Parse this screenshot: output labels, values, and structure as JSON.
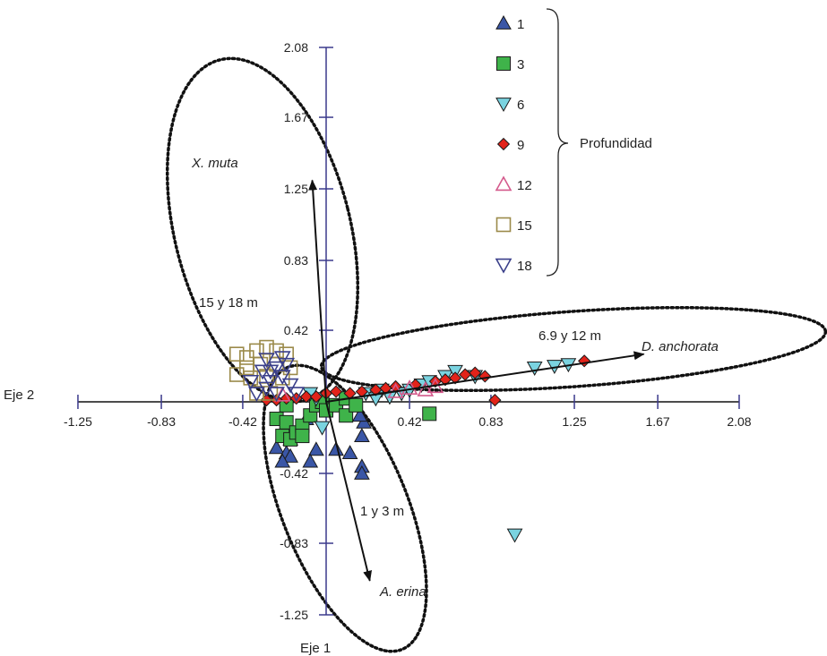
{
  "chart_data": {
    "type": "scatter",
    "xaxis_title": "Eje 2",
    "yaxis_title": "Eje 1",
    "xticks": [
      -1.25,
      -0.83,
      -0.42,
      0.42,
      0.83,
      1.25,
      1.67,
      2.08
    ],
    "yticks": [
      2.08,
      1.67,
      1.25,
      0.83,
      0.42,
      -0.42,
      -0.83,
      -1.25
    ],
    "xlim": [
      -1.25,
      2.08
    ],
    "ylim": [
      -1.25,
      2.08
    ],
    "legend_title": "Profundidad",
    "legend_placement": "top-right",
    "series": [
      {
        "name": "1",
        "marker": "triangle-up",
        "color": "#3a56a6",
        "filled": true,
        "points": [
          [
            -0.25,
            -0.27
          ],
          [
            -0.2,
            -0.3
          ],
          [
            -0.18,
            -0.32
          ],
          [
            -0.05,
            -0.28
          ],
          [
            -0.08,
            -0.35
          ],
          [
            0.05,
            -0.28
          ],
          [
            0.12,
            -0.3
          ],
          [
            0.18,
            -0.2
          ],
          [
            0.18,
            -0.38
          ],
          [
            0.18,
            -0.42
          ],
          [
            0.19,
            -0.12
          ],
          [
            0.17,
            -0.08
          ],
          [
            -0.1,
            -0.1
          ],
          [
            -0.18,
            -0.22
          ],
          [
            -0.22,
            -0.35
          ]
        ]
      },
      {
        "name": "3",
        "marker": "square",
        "color": "#3fb34a",
        "filled": true,
        "points": [
          [
            -0.25,
            -0.1
          ],
          [
            -0.2,
            -0.12
          ],
          [
            -0.22,
            -0.2
          ],
          [
            -0.18,
            -0.22
          ],
          [
            -0.15,
            -0.18
          ],
          [
            -0.12,
            -0.14
          ],
          [
            -0.08,
            -0.08
          ],
          [
            -0.05,
            -0.02
          ],
          [
            -0.02,
            0.0
          ],
          [
            0.0,
            -0.05
          ],
          [
            0.05,
            -0.02
          ],
          [
            0.1,
            -0.08
          ],
          [
            0.1,
            0.02
          ],
          [
            0.15,
            -0.02
          ],
          [
            0.52,
            -0.07
          ],
          [
            -0.2,
            -0.02
          ],
          [
            -0.12,
            -0.2
          ]
        ]
      },
      {
        "name": "6",
        "marker": "triangle-down",
        "color": "#7ad3e0",
        "filled": true,
        "points": [
          [
            -0.05,
            0.02
          ],
          [
            -0.08,
            0.05
          ],
          [
            -0.02,
            -0.15
          ],
          [
            0.2,
            0.05
          ],
          [
            0.28,
            0.07
          ],
          [
            0.32,
            0.03
          ],
          [
            0.38,
            0.05
          ],
          [
            0.42,
            0.07
          ],
          [
            0.48,
            0.1
          ],
          [
            0.52,
            0.12
          ],
          [
            0.6,
            0.15
          ],
          [
            0.65,
            0.18
          ],
          [
            0.75,
            0.15
          ],
          [
            1.05,
            0.2
          ],
          [
            1.15,
            0.21
          ],
          [
            1.22,
            0.22
          ],
          [
            0.95,
            -0.78
          ],
          [
            0.25,
            0.02
          ]
        ]
      },
      {
        "name": "9",
        "marker": "diamond",
        "color": "#e2231a",
        "filled": true,
        "points": [
          [
            -0.3,
            0.01
          ],
          [
            -0.25,
            0.01
          ],
          [
            -0.2,
            0.02
          ],
          [
            -0.15,
            0.02
          ],
          [
            -0.1,
            0.03
          ],
          [
            -0.05,
            0.03
          ],
          [
            0.0,
            0.05
          ],
          [
            0.05,
            0.06
          ],
          [
            0.12,
            0.05
          ],
          [
            0.18,
            0.06
          ],
          [
            0.25,
            0.07
          ],
          [
            0.3,
            0.08
          ],
          [
            0.35,
            0.09
          ],
          [
            0.45,
            0.1
          ],
          [
            0.55,
            0.12
          ],
          [
            0.6,
            0.13
          ],
          [
            0.65,
            0.14
          ],
          [
            0.7,
            0.16
          ],
          [
            0.75,
            0.17
          ],
          [
            0.8,
            0.15
          ],
          [
            0.85,
            0.01
          ],
          [
            1.3,
            0.24
          ]
        ]
      },
      {
        "name": "12",
        "marker": "triangle-up",
        "color": "#d45a8c",
        "filled": false,
        "points": [
          [
            0.35,
            0.06
          ],
          [
            0.42,
            0.08
          ],
          [
            0.5,
            0.07
          ],
          [
            0.55,
            0.09
          ],
          [
            -0.22,
            0.04
          ]
        ]
      },
      {
        "name": "15",
        "marker": "square",
        "color": "#9b8a4a",
        "filled": false,
        "points": [
          [
            -0.45,
            0.28
          ],
          [
            -0.4,
            0.26
          ],
          [
            -0.35,
            0.3
          ],
          [
            -0.3,
            0.32
          ],
          [
            -0.25,
            0.3
          ],
          [
            -0.2,
            0.28
          ],
          [
            -0.45,
            0.16
          ],
          [
            -0.38,
            0.14
          ],
          [
            -0.3,
            0.15
          ],
          [
            -0.22,
            0.14
          ],
          [
            -0.35,
            0.05
          ],
          [
            -0.28,
            0.05
          ],
          [
            -0.4,
            0.2
          ],
          [
            -0.33,
            0.22
          ],
          [
            -0.25,
            0.22
          ],
          [
            -0.18,
            0.2
          ]
        ]
      },
      {
        "name": "18",
        "marker": "triangle-down",
        "color": "#3a3f8a",
        "filled": false,
        "points": [
          [
            -0.38,
            0.12
          ],
          [
            -0.32,
            0.18
          ],
          [
            -0.3,
            0.25
          ],
          [
            -0.28,
            0.12
          ],
          [
            -0.25,
            0.2
          ],
          [
            -0.22,
            0.15
          ],
          [
            -0.2,
            0.22
          ],
          [
            -0.35,
            0.05
          ],
          [
            -0.3,
            0.08
          ],
          [
            -0.25,
            0.05
          ],
          [
            -0.18,
            0.1
          ],
          [
            -0.15,
            0.05
          ],
          [
            -0.28,
            0.18
          ],
          [
            -0.22,
            0.26
          ]
        ]
      }
    ],
    "vectors": [
      {
        "label": "X. muta",
        "x": -0.07,
        "y": 1.3
      },
      {
        "label": "D. anchorata",
        "x": 1.6,
        "y": 0.28
      },
      {
        "label": "A. erina",
        "x": 0.22,
        "y": -1.05
      }
    ],
    "groups": [
      {
        "label": "15 y 18 m"
      },
      {
        "label": "6.9 y 12 m"
      },
      {
        "label": "1 y 3 m"
      }
    ]
  }
}
